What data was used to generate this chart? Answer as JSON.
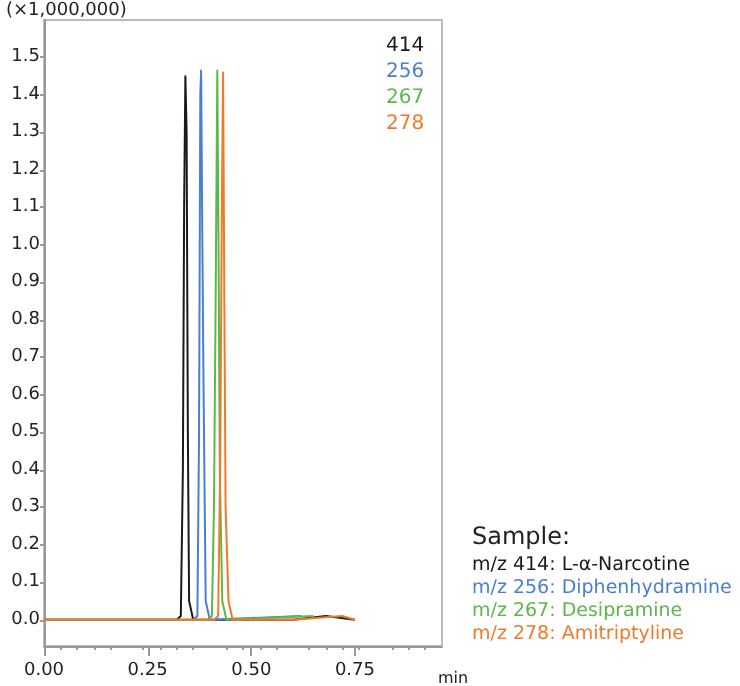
{
  "chart_data": {
    "type": "line",
    "ylabel": "(×1,000,000)",
    "xlabel": "min",
    "annotations": [
      "Sample:",
      "m/z 414: L-α-Narcotine",
      "m/z 256: Diphenhydramine",
      "m/z 267: Desipramine",
      "m/z 278: Amitriptyline"
    ],
    "xlim": [
      0,
      0.96
    ],
    "ylim": [
      -0.07,
      1.6
    ],
    "xticks": [
      {
        "value": 0,
        "label": "0.00"
      },
      {
        "value": 0.25,
        "label": "0.25"
      },
      {
        "value": 0.5,
        "label": "0.50"
      },
      {
        "value": 0.75,
        "label": "0.75"
      }
    ],
    "yticks": [
      {
        "value": 0,
        "label": "0.0"
      },
      {
        "value": 0.1,
        "label": "0.1"
      },
      {
        "value": 0.2,
        "label": "0.2"
      },
      {
        "value": 0.3,
        "label": "0.3"
      },
      {
        "value": 0.4,
        "label": "0.4"
      },
      {
        "value": 0.5,
        "label": "0.5"
      },
      {
        "value": 0.6,
        "label": "0.6"
      },
      {
        "value": 0.7,
        "label": "0.7"
      },
      {
        "value": 0.8,
        "label": "0.8"
      },
      {
        "value": 0.9,
        "label": "0.9"
      },
      {
        "value": 1,
        "label": "1.0"
      },
      {
        "value": 1.1,
        "label": "1.1"
      },
      {
        "value": 1.2,
        "label": "1.2"
      },
      {
        "value": 1.3,
        "label": "1.3"
      },
      {
        "value": 1.4,
        "label": "1.4"
      },
      {
        "value": 1.5,
        "label": "1.5"
      }
    ],
    "grid": false,
    "legend": "right",
    "marker": "none",
    "line_style": "solid",
    "series": [
      {
        "name": "414",
        "color": "#1a1a1a",
        "x": [
          0,
          0.32,
          0.33,
          0.335,
          0.338,
          0.341,
          0.344,
          0.347,
          0.35,
          0.36,
          0.6,
          0.68,
          0.75
        ],
        "values": [
          0,
          0,
          0.01,
          0.4,
          1.1,
          1.45,
          1.3,
          0.5,
          0.05,
          0,
          0,
          0.01,
          0
        ]
      },
      {
        "name": "256",
        "color": "#4a7fd0",
        "x": [
          0,
          0.36,
          0.37,
          0.374,
          0.377,
          0.379,
          0.382,
          0.385,
          0.39,
          0.4,
          0.62
        ],
        "values": [
          0,
          0,
          0.01,
          0.5,
          1.4,
          1.465,
          1.0,
          0.6,
          0.05,
          0,
          0.01
        ]
      },
      {
        "name": "267",
        "color": "#5cb84a",
        "x": [
          0,
          0.395,
          0.405,
          0.41,
          0.414,
          0.418,
          0.421,
          0.424,
          0.43,
          0.44,
          0.65
        ],
        "values": [
          0,
          0,
          0.01,
          0.3,
          0.85,
          1.465,
          1.0,
          0.4,
          0.05,
          0,
          0.01
        ]
      },
      {
        "name": "278",
        "color": "#f07a2a",
        "x": [
          0,
          0.41,
          0.42,
          0.425,
          0.429,
          0.432,
          0.435,
          0.438,
          0.445,
          0.455,
          0.6,
          0.72,
          0.75
        ],
        "values": [
          0,
          0,
          0.01,
          0.4,
          1.1,
          1.46,
          0.85,
          0.3,
          0.05,
          0,
          0,
          0.01,
          0
        ]
      }
    ]
  }
}
